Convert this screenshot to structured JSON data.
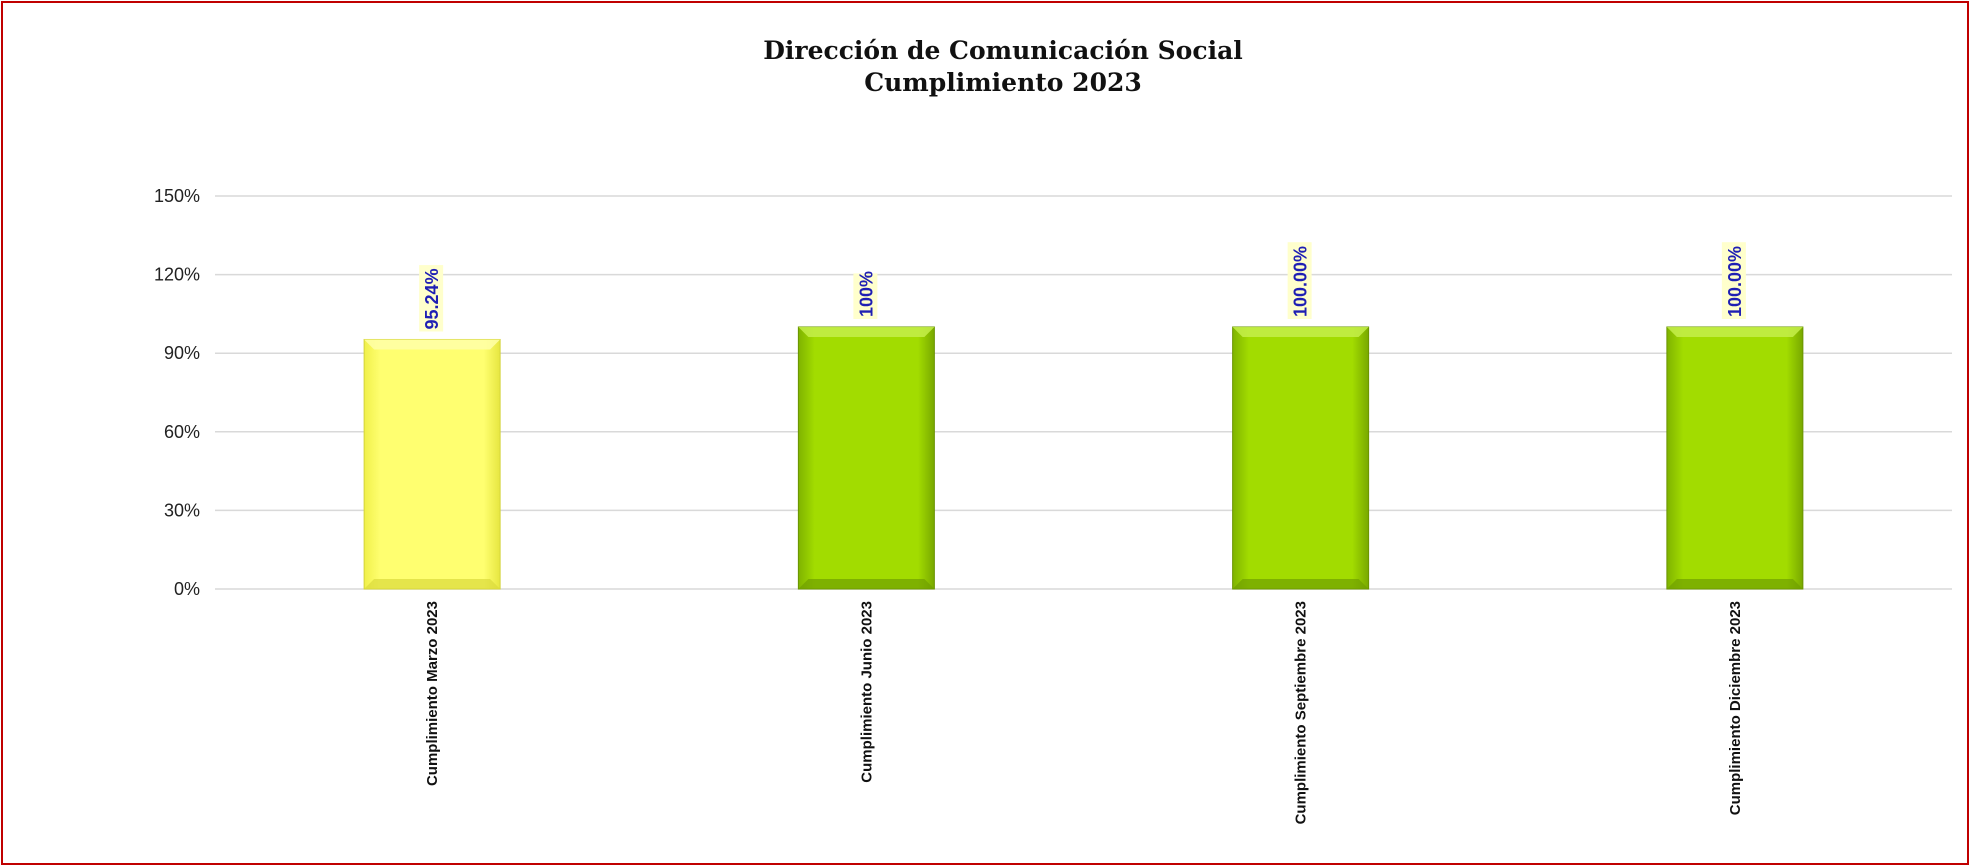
{
  "chart_data": {
    "type": "bar",
    "title": "Dirección de Comunicación Social",
    "subtitle": "Cumplimiento 2023",
    "categories": [
      "Cumplimiento Marzo 2023",
      "Cumplimiento Junio 2023",
      "Cumplimiento Septiembre 2023",
      "Cumplimiento Diciembre 2023"
    ],
    "values": [
      95.24,
      100,
      100,
      100
    ],
    "data_labels": [
      "95.24%",
      "100%",
      "100.00%",
      "100.00%"
    ],
    "bar_colors": [
      "#ffff66",
      "#99d600",
      "#99d600",
      "#99d600"
    ],
    "y_ticks": [
      "0%",
      "30%",
      "60%",
      "90%",
      "120%",
      "150%"
    ],
    "ylim": [
      0,
      150
    ],
    "y_tick_step": 30,
    "grid": true,
    "legend": "none",
    "xlabel": "",
    "ylabel": ""
  },
  "colors": {
    "border": "#c00000",
    "gridline": "#d9d9d9",
    "data_label": "#1f1fb4",
    "label_highlight": "#ffffcc"
  }
}
